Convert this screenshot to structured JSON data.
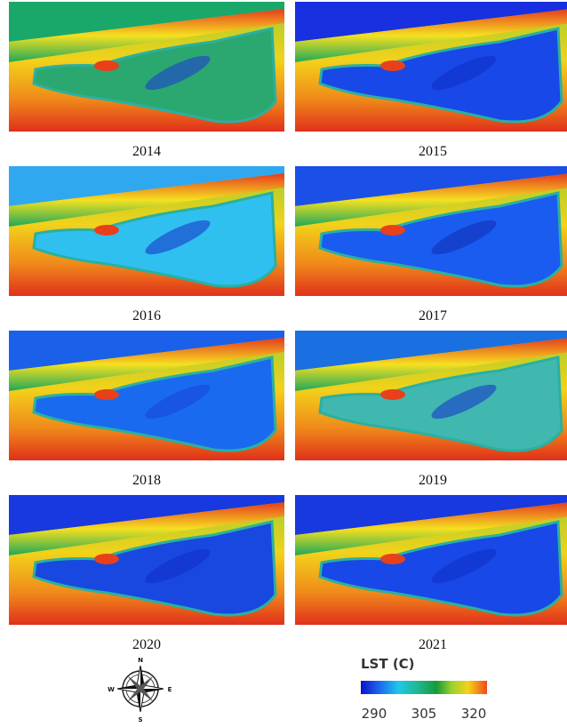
{
  "panels": [
    {
      "year": "2014"
    },
    {
      "year": "2015"
    },
    {
      "year": "2016"
    },
    {
      "year": "2017"
    },
    {
      "year": "2018"
    },
    {
      "year": "2019"
    },
    {
      "year": "2020"
    },
    {
      "year": "2021"
    }
  ],
  "compass": {
    "north": "N",
    "east": "E",
    "south": "S",
    "west": "W"
  },
  "legend": {
    "title": "LST (C)",
    "range": [
      286,
      324
    ],
    "ticks": [
      290,
      305,
      320
    ]
  }
}
